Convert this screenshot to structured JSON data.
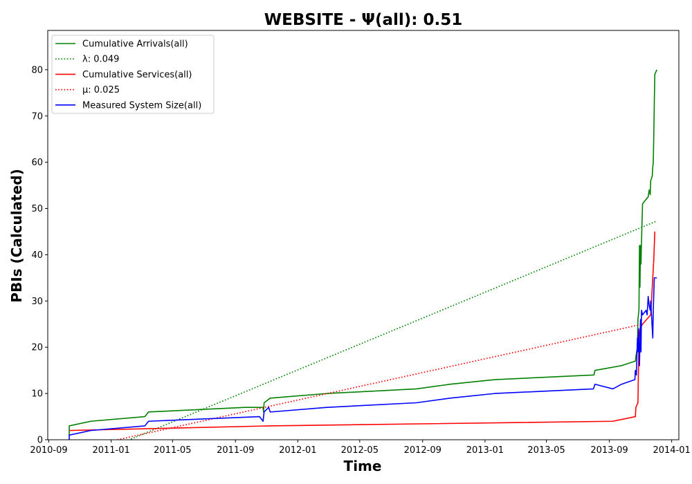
{
  "chart_data": {
    "type": "line",
    "title": "WEBSITE -  Ψ(all): 0.51",
    "xlabel": "Time",
    "ylabel": "PBIs (Calculated)",
    "xlim": [
      "2010-08-30",
      "2014-01-15"
    ],
    "ylim": [
      0,
      88.5
    ],
    "grid": false,
    "legend_position": "top-left",
    "x_ticks": [
      "2010-09",
      "2011-01",
      "2011-05",
      "2011-09",
      "2012-01",
      "2012-05",
      "2012-09",
      "2013-01",
      "2013-05",
      "2013-09",
      "2014-01"
    ],
    "y_ticks": [
      0,
      10,
      20,
      30,
      40,
      50,
      60,
      70,
      80
    ],
    "series": [
      {
        "name": "Cumulative Arrivals(all)",
        "color": "#008000",
        "style": "solid",
        "points": [
          [
            "2010-10-11",
            1
          ],
          [
            "2010-10-11",
            3
          ],
          [
            "2010-11-22",
            4
          ],
          [
            "2011-03-08",
            5
          ],
          [
            "2011-03-15",
            6
          ],
          [
            "2011-09-20",
            7
          ],
          [
            "2011-10-25",
            7
          ],
          [
            "2011-10-26",
            6
          ],
          [
            "2011-10-27",
            8
          ],
          [
            "2011-11-08",
            9
          ],
          [
            "2012-02-27",
            10
          ],
          [
            "2012-08-20",
            11
          ],
          [
            "2012-10-25",
            12
          ],
          [
            "2013-01-20",
            13
          ],
          [
            "2013-08-02",
            14
          ],
          [
            "2013-08-04",
            15
          ],
          [
            "2013-09-24",
            16
          ],
          [
            "2013-10-22",
            17
          ],
          [
            "2013-10-23",
            18
          ],
          [
            "2013-10-26",
            20
          ],
          [
            "2013-10-27",
            26
          ],
          [
            "2013-10-29",
            28
          ],
          [
            "2013-10-30",
            42
          ],
          [
            "2013-10-31",
            33
          ],
          [
            "2013-11-01",
            42
          ],
          [
            "2013-11-02",
            38
          ],
          [
            "2013-11-03",
            43
          ],
          [
            "2013-11-05",
            51
          ],
          [
            "2013-11-12",
            52
          ],
          [
            "2013-11-16",
            52.5
          ],
          [
            "2013-11-18",
            54
          ],
          [
            "2013-11-20",
            53
          ],
          [
            "2013-11-21",
            56
          ],
          [
            "2013-11-24",
            57
          ],
          [
            "2013-11-25",
            59
          ],
          [
            "2013-11-26",
            60
          ],
          [
            "2013-11-27",
            66
          ],
          [
            "2013-11-28",
            73
          ],
          [
            "2013-11-29",
            79
          ],
          [
            "2013-12-03",
            80
          ]
        ]
      },
      {
        "name": "λ: 0.049",
        "color": "#008000",
        "style": "dotted",
        "points": [
          [
            "2010-10-11",
            -5.4
          ],
          [
            "2013-12-03",
            47.3
          ]
        ]
      },
      {
        "name": "Cumulative Services(all)",
        "color": "#ff0000",
        "style": "solid",
        "points": [
          [
            "2010-10-11",
            2
          ],
          [
            "2011-11-08",
            3
          ],
          [
            "2013-09-08",
            4
          ],
          [
            "2013-10-22",
            5
          ],
          [
            "2013-10-23",
            7
          ],
          [
            "2013-10-27",
            8
          ],
          [
            "2013-10-29",
            22
          ],
          [
            "2013-10-31",
            24
          ],
          [
            "2013-11-05",
            25
          ],
          [
            "2013-11-21",
            27
          ],
          [
            "2013-11-27",
            39
          ],
          [
            "2013-11-29",
            45
          ]
        ]
      },
      {
        "name": "μ: 0.025",
        "color": "#ff0000",
        "style": "dotted",
        "points": [
          [
            "2010-10-11",
            -2.3
          ],
          [
            "2013-11-05",
            25
          ]
        ]
      },
      {
        "name": "Measured System Size(all)",
        "color": "#0000ff",
        "style": "solid",
        "points": [
          [
            "2010-10-11",
            0
          ],
          [
            "2010-10-11",
            1
          ],
          [
            "2010-11-22",
            2
          ],
          [
            "2011-03-08",
            3
          ],
          [
            "2011-03-15",
            4
          ],
          [
            "2011-10-18",
            5
          ],
          [
            "2011-10-25",
            4
          ],
          [
            "2011-10-27",
            6
          ],
          [
            "2011-11-05",
            7
          ],
          [
            "2011-11-08",
            6
          ],
          [
            "2012-02-27",
            7
          ],
          [
            "2012-08-20",
            8
          ],
          [
            "2012-10-25",
            9
          ],
          [
            "2013-01-20",
            10
          ],
          [
            "2013-08-01",
            11
          ],
          [
            "2013-08-04",
            12
          ],
          [
            "2013-09-08",
            11
          ],
          [
            "2013-09-25",
            12
          ],
          [
            "2013-10-21",
            13
          ],
          [
            "2013-10-22",
            15
          ],
          [
            "2013-10-24",
            14
          ],
          [
            "2013-10-26",
            22
          ],
          [
            "2013-10-27",
            19
          ],
          [
            "2013-10-28",
            24
          ],
          [
            "2013-10-30",
            16
          ],
          [
            "2013-11-01",
            26
          ],
          [
            "2013-11-02",
            19
          ],
          [
            "2013-11-03",
            28
          ],
          [
            "2013-11-05",
            27
          ],
          [
            "2013-11-12",
            28
          ],
          [
            "2013-11-14",
            27
          ],
          [
            "2013-11-16",
            31
          ],
          [
            "2013-11-18",
            29
          ],
          [
            "2013-11-20",
            28
          ],
          [
            "2013-11-21",
            30
          ],
          [
            "2013-11-23",
            26
          ],
          [
            "2013-11-25",
            22
          ],
          [
            "2013-11-26",
            28
          ],
          [
            "2013-11-28",
            35
          ],
          [
            "2013-12-03",
            35
          ]
        ]
      }
    ]
  }
}
